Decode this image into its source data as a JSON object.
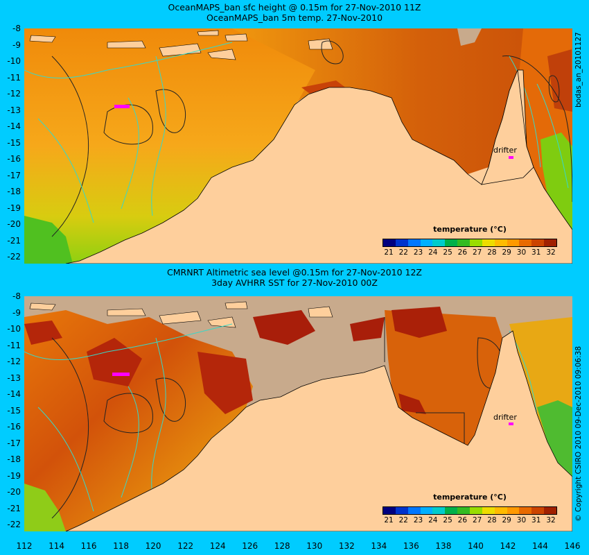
{
  "top": {
    "title1": "OceanMAPS_ban sfc height @ 0.15m for 27-Nov-2010 11Z",
    "title2": "OceanMAPS_ban 5m temp. 27-Nov-2010",
    "side_label": "bodas_an_20101127",
    "legend_title": "temperature (°C)",
    "drifter_label": "drifter"
  },
  "bottom": {
    "title1": "CMRNRT Altimetric sea level @0.15m for 27-Nov-2010 12Z",
    "title2": "3day AVHRR SST for 27-Nov-2010 00Z",
    "side_label": "© Copyright CSIRO 2010 09-Dec-2010 09:06:38",
    "legend_title": "temperature (°C)",
    "drifter_label": "drifter"
  },
  "y_ticks": [
    "-8",
    "-9",
    "-10",
    "-11",
    "-12",
    "-13",
    "-14",
    "-15",
    "-16",
    "-17",
    "-18",
    "-19",
    "-20",
    "-21",
    "-22"
  ],
  "x_ticks": [
    "112",
    "114",
    "116",
    "118",
    "120",
    "122",
    "124",
    "126",
    "128",
    "130",
    "132",
    "134",
    "136",
    "138",
    "140",
    "142",
    "144",
    "146"
  ],
  "legend_ticks": [
    "21",
    "22",
    "23",
    "24",
    "25",
    "26",
    "27",
    "28",
    "29",
    "30",
    "31",
    "32"
  ],
  "legend_colors": [
    "#00007f",
    "#0033cc",
    "#0077ff",
    "#00b0ff",
    "#00cccc",
    "#00b04a",
    "#33bb22",
    "#99dd00",
    "#eedd00",
    "#ffbb00",
    "#ff9900",
    "#e86a00",
    "#cc4400",
    "#a02000"
  ],
  "colors": {
    "background": "#00ccff",
    "land": "#fecf9c",
    "no_data": "#c8aa8c",
    "drifter": "#ff00ff"
  }
}
